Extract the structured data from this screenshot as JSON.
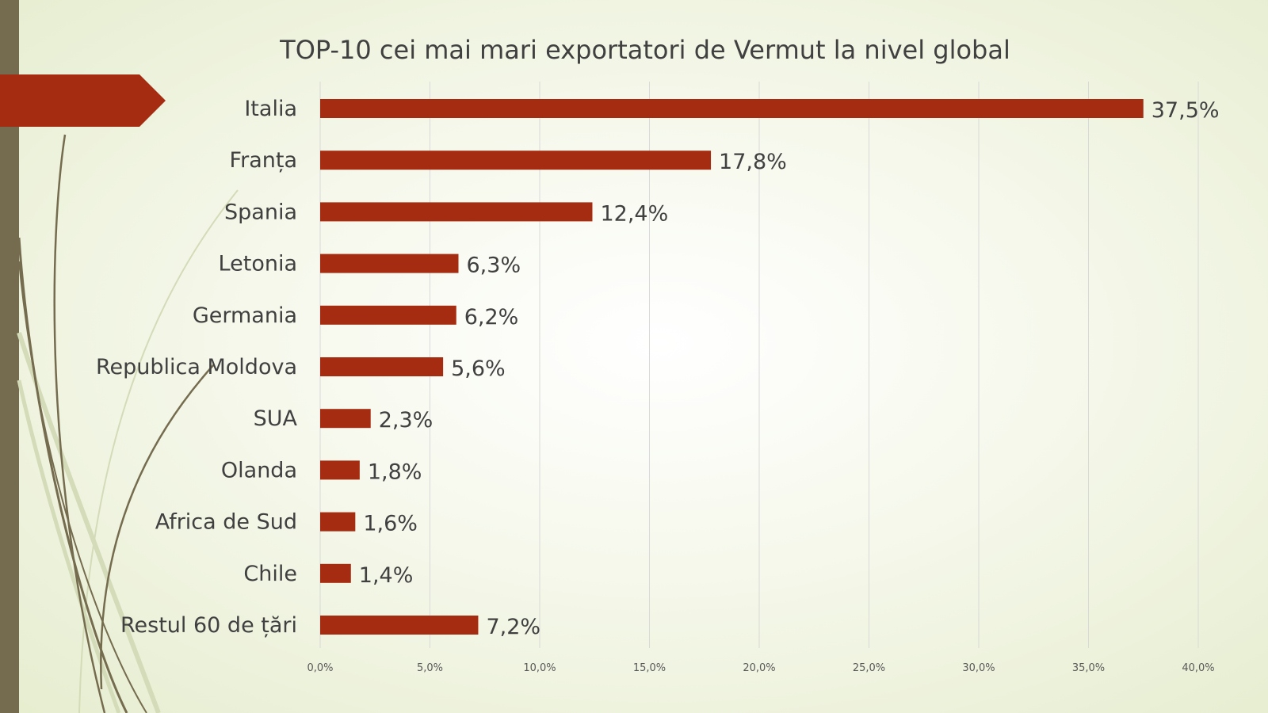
{
  "chart_data": {
    "type": "bar",
    "orientation": "horizontal",
    "title": "TOP-10 cei mai mari exportatori de Vermut la nivel global",
    "categories": [
      "Italia",
      "Franța",
      "Spania",
      "Letonia",
      "Germania",
      "Republica Moldova",
      "SUA",
      "Olanda",
      "Africa de Sud",
      "Chile",
      "Restul 60 de țări"
    ],
    "values": [
      37.5,
      17.8,
      12.4,
      6.3,
      6.2,
      5.6,
      2.3,
      1.8,
      1.6,
      1.4,
      7.2
    ],
    "value_labels": [
      "37,5%",
      "17,8%",
      "12,4%",
      "6,3%",
      "6,2%",
      "5,6%",
      "2,3%",
      "1,8%",
      "1,6%",
      "1,4%",
      "7,2%"
    ],
    "xlim": [
      0,
      40
    ],
    "xticks": [
      0,
      5,
      10,
      15,
      20,
      25,
      30,
      35,
      40
    ],
    "xtick_labels": [
      "0,0%",
      "5,0%",
      "10,0%",
      "15,0%",
      "20,0%",
      "25,0%",
      "30,0%",
      "35,0%",
      "40,0%"
    ],
    "grid": true,
    "bar_color": "#a52c10",
    "grid_color": "#d9d9d9"
  },
  "theme": {
    "accent": "#a52c10",
    "side_bar": "#756c4f"
  }
}
